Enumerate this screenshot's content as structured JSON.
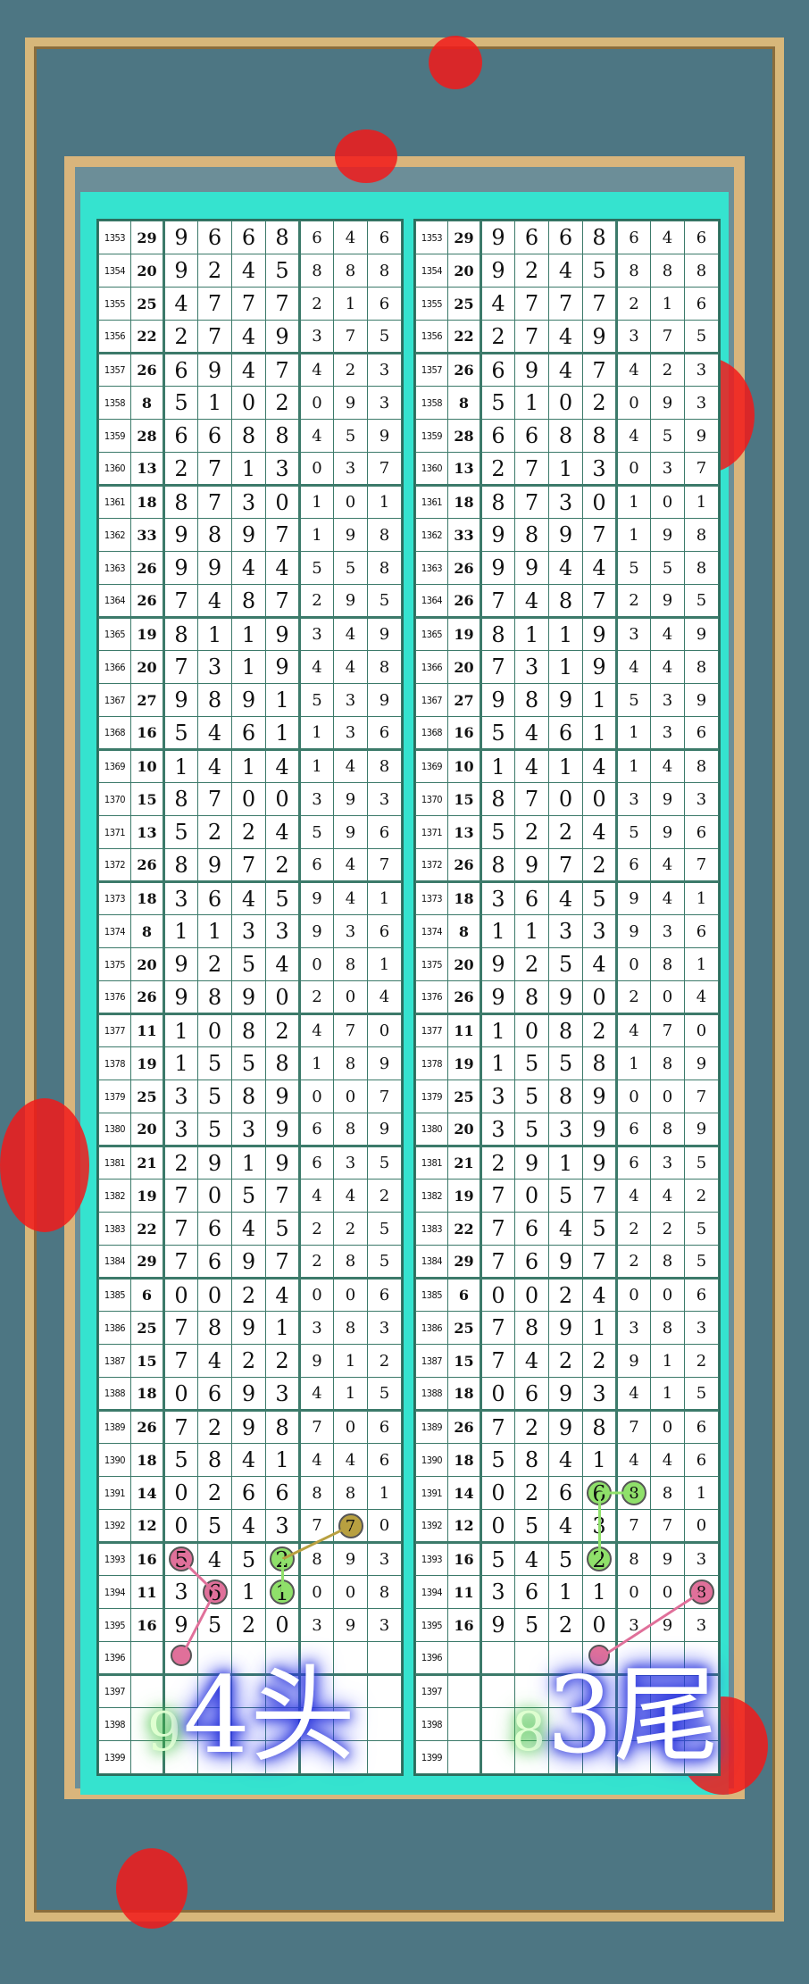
{
  "colors": {
    "frame": "#d9b57c",
    "table_border": "#35e3cf",
    "green_mark": "#8fe06a",
    "olive_mark": "#b8a040",
    "pink_mark": "#e0709a",
    "flower": "#f21a1a"
  },
  "rows": [
    [
      "1353",
      "29",
      "9",
      "6",
      "6",
      "8",
      "6",
      "4",
      "6"
    ],
    [
      "1354",
      "20",
      "9",
      "2",
      "4",
      "5",
      "8",
      "8",
      "8"
    ],
    [
      "1355",
      "25",
      "4",
      "7",
      "7",
      "7",
      "2",
      "1",
      "6"
    ],
    [
      "1356",
      "22",
      "2",
      "7",
      "4",
      "9",
      "3",
      "7",
      "5"
    ],
    [
      "1357",
      "26",
      "6",
      "9",
      "4",
      "7",
      "4",
      "2",
      "3"
    ],
    [
      "1358",
      "8",
      "5",
      "1",
      "0",
      "2",
      "0",
      "9",
      "3"
    ],
    [
      "1359",
      "28",
      "6",
      "6",
      "8",
      "8",
      "4",
      "5",
      "9"
    ],
    [
      "1360",
      "13",
      "2",
      "7",
      "1",
      "3",
      "0",
      "3",
      "7"
    ],
    [
      "1361",
      "18",
      "8",
      "7",
      "3",
      "0",
      "1",
      "0",
      "1"
    ],
    [
      "1362",
      "33",
      "9",
      "8",
      "9",
      "7",
      "1",
      "9",
      "8"
    ],
    [
      "1363",
      "26",
      "9",
      "9",
      "4",
      "4",
      "5",
      "5",
      "8"
    ],
    [
      "1364",
      "26",
      "7",
      "4",
      "8",
      "7",
      "2",
      "9",
      "5"
    ],
    [
      "1365",
      "19",
      "8",
      "1",
      "1",
      "9",
      "3",
      "4",
      "9"
    ],
    [
      "1366",
      "20",
      "7",
      "3",
      "1",
      "9",
      "4",
      "4",
      "8"
    ],
    [
      "1367",
      "27",
      "9",
      "8",
      "9",
      "1",
      "5",
      "3",
      "9"
    ],
    [
      "1368",
      "16",
      "5",
      "4",
      "6",
      "1",
      "1",
      "3",
      "6"
    ],
    [
      "1369",
      "10",
      "1",
      "4",
      "1",
      "4",
      "1",
      "4",
      "8"
    ],
    [
      "1370",
      "15",
      "8",
      "7",
      "0",
      "0",
      "3",
      "9",
      "3"
    ],
    [
      "1371",
      "13",
      "5",
      "2",
      "2",
      "4",
      "5",
      "9",
      "6"
    ],
    [
      "1372",
      "26",
      "8",
      "9",
      "7",
      "2",
      "6",
      "4",
      "7"
    ],
    [
      "1373",
      "18",
      "3",
      "6",
      "4",
      "5",
      "9",
      "4",
      "1"
    ],
    [
      "1374",
      "8",
      "1",
      "1",
      "3",
      "3",
      "9",
      "3",
      "6"
    ],
    [
      "1375",
      "20",
      "9",
      "2",
      "5",
      "4",
      "0",
      "8",
      "1"
    ],
    [
      "1376",
      "26",
      "9",
      "8",
      "9",
      "0",
      "2",
      "0",
      "4"
    ],
    [
      "1377",
      "11",
      "1",
      "0",
      "8",
      "2",
      "4",
      "7",
      "0"
    ],
    [
      "1378",
      "19",
      "1",
      "5",
      "5",
      "8",
      "1",
      "8",
      "9"
    ],
    [
      "1379",
      "25",
      "3",
      "5",
      "8",
      "9",
      "0",
      "0",
      "7"
    ],
    [
      "1380",
      "20",
      "3",
      "5",
      "3",
      "9",
      "6",
      "8",
      "9"
    ],
    [
      "1381",
      "21",
      "2",
      "9",
      "1",
      "9",
      "6",
      "3",
      "5"
    ],
    [
      "1382",
      "19",
      "7",
      "0",
      "5",
      "7",
      "4",
      "4",
      "2"
    ],
    [
      "1383",
      "22",
      "7",
      "6",
      "4",
      "5",
      "2",
      "2",
      "5"
    ],
    [
      "1384",
      "29",
      "7",
      "6",
      "9",
      "7",
      "2",
      "8",
      "5"
    ],
    [
      "1385",
      "6",
      "0",
      "0",
      "2",
      "4",
      "0",
      "0",
      "6"
    ],
    [
      "1386",
      "25",
      "7",
      "8",
      "9",
      "1",
      "3",
      "8",
      "3"
    ],
    [
      "1387",
      "15",
      "7",
      "4",
      "2",
      "2",
      "9",
      "1",
      "2"
    ],
    [
      "1388",
      "18",
      "0",
      "6",
      "9",
      "3",
      "4",
      "1",
      "5"
    ],
    [
      "1389",
      "26",
      "7",
      "2",
      "9",
      "8",
      "7",
      "0",
      "6"
    ],
    [
      "1390",
      "18",
      "5",
      "8",
      "4",
      "1",
      "4",
      "4",
      "6"
    ],
    [
      "1391",
      "14",
      "0",
      "2",
      "6",
      "6",
      "8",
      "8",
      "1"
    ],
    [
      "1392",
      "12",
      "0",
      "5",
      "4",
      "3",
      "7",
      "7",
      "0"
    ],
    [
      "1393",
      "16",
      "5",
      "4",
      "5",
      "2",
      "8",
      "9",
      "3"
    ],
    [
      "1394",
      "11",
      "3",
      "6",
      "1",
      "1",
      "0",
      "0",
      "8"
    ],
    [
      "1395",
      "16",
      "9",
      "5",
      "2",
      "0",
      "3",
      "9",
      "3"
    ],
    [
      "1396",
      "",
      "",
      "",
      "",
      "",
      "",
      "",
      ""
    ],
    [
      "1397",
      "",
      "",
      "",
      "",
      "",
      "",
      "",
      ""
    ],
    [
      "1398",
      "",
      "",
      "",
      "",
      "",
      "",
      "",
      ""
    ],
    [
      "1399",
      "",
      "",
      "",
      "",
      "",
      "",
      "",
      ""
    ]
  ],
  "left": {
    "marks": [
      {
        "issue": "1392",
        "col": 5,
        "color": "olive"
      },
      {
        "issue": "1393",
        "col": 3,
        "color": "green"
      },
      {
        "issue": "1394",
        "col": 3,
        "color": "green"
      },
      {
        "issue": "1393",
        "col": 0,
        "color": "pink"
      },
      {
        "issue": "1394",
        "col": 1,
        "color": "pink"
      },
      {
        "issue": "1396",
        "col": 0,
        "color": "pink",
        "dot": true
      }
    ],
    "links": [
      [
        0,
        1
      ],
      [
        1,
        2
      ],
      [
        3,
        4
      ],
      [
        4,
        5
      ]
    ],
    "pick_small": "9",
    "pick_big": "4头"
  },
  "right": {
    "marks": [
      {
        "issue": "1391",
        "col": 3,
        "color": "green"
      },
      {
        "issue": "1391",
        "col": 4,
        "color": "green"
      },
      {
        "issue": "1393",
        "col": 3,
        "color": "green"
      },
      {
        "issue": "1394",
        "col": 6,
        "color": "pink"
      },
      {
        "issue": "1396",
        "col": 3,
        "color": "pink",
        "dot": true
      }
    ],
    "links": [
      [
        0,
        1
      ],
      [
        0,
        2
      ],
      [
        3,
        4
      ]
    ],
    "pick_small": "8",
    "pick_big": "3尾"
  }
}
